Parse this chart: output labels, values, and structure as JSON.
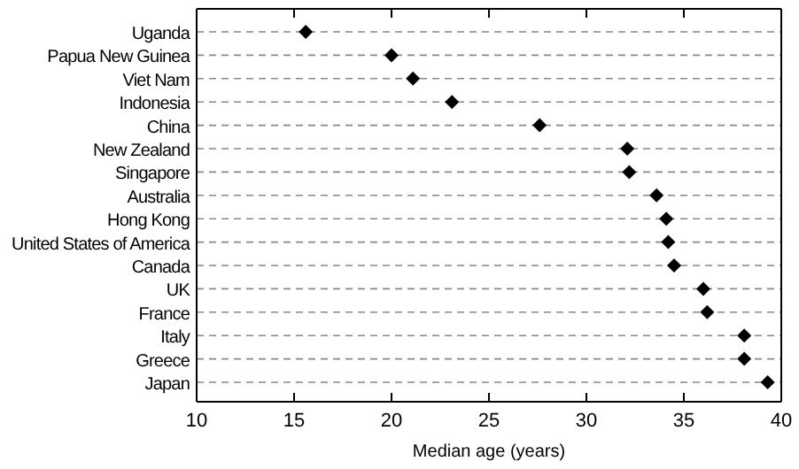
{
  "chart_data": {
    "type": "scatter",
    "orientation": "horizontal",
    "xlabel": "Median age (years)",
    "categories": [
      "Uganda",
      "Papua New Guinea",
      "Viet Nam",
      "Indonesia",
      "China",
      "New Zealand",
      "Singapore",
      "Australia",
      "Hong Kong",
      "United States of America",
      "Canada",
      "UK",
      "France",
      "Italy",
      "Greece",
      "Japan"
    ],
    "values": [
      15.6,
      20.0,
      21.1,
      23.1,
      27.6,
      32.1,
      32.2,
      33.6,
      34.1,
      34.2,
      34.5,
      36.0,
      36.2,
      38.1,
      38.1,
      39.3
    ],
    "color": "#000000",
    "marker": "diamond",
    "xlim": [
      10,
      40
    ],
    "xticks": [
      10,
      15,
      20,
      25,
      30,
      35,
      40
    ],
    "grid": "y"
  }
}
